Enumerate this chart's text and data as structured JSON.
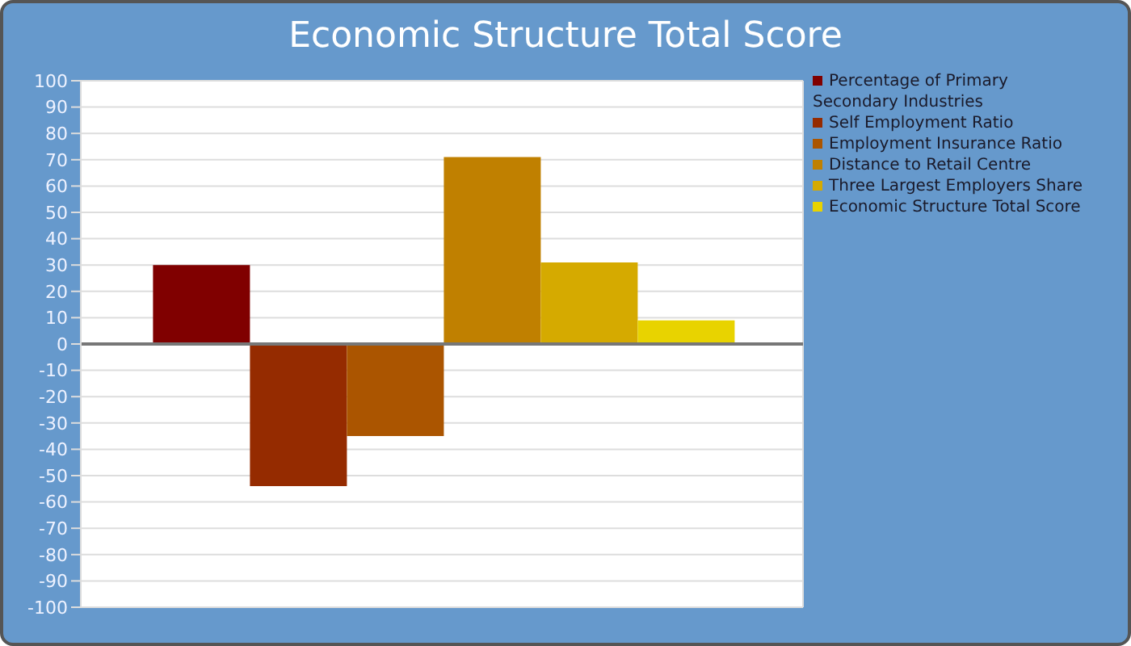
{
  "chart_data": {
    "type": "bar",
    "title": "Economic Structure Total Score",
    "categories": [
      null
    ],
    "series": [
      {
        "name": "Percentage of Primary Secondary Industries",
        "color": "#800000",
        "values": [
          30
        ]
      },
      {
        "name": "Self Employment Ratio",
        "color": "#952b00",
        "values": [
          -54
        ]
      },
      {
        "name": "Employment Insurance Ratio",
        "color": "#ab5500",
        "values": [
          -35
        ]
      },
      {
        "name": "Distance to Retail Centre",
        "color": "#c08000",
        "values": [
          71
        ]
      },
      {
        "name": "Three Largest Employers Share",
        "color": "#d5aa00",
        "values": [
          31
        ]
      },
      {
        "name": "Economic Structure Total Score",
        "color": "#e8d300",
        "values": [
          9
        ]
      }
    ],
    "ylim": [
      -100,
      100
    ],
    "yticks": [
      -100,
      -90,
      -80,
      -70,
      -60,
      -50,
      -40,
      -30,
      -20,
      -10,
      0,
      10,
      20,
      30,
      40,
      50,
      60,
      70,
      80,
      90,
      100
    ],
    "grid": true,
    "legend": "top right",
    "tick_labels": "y"
  }
}
